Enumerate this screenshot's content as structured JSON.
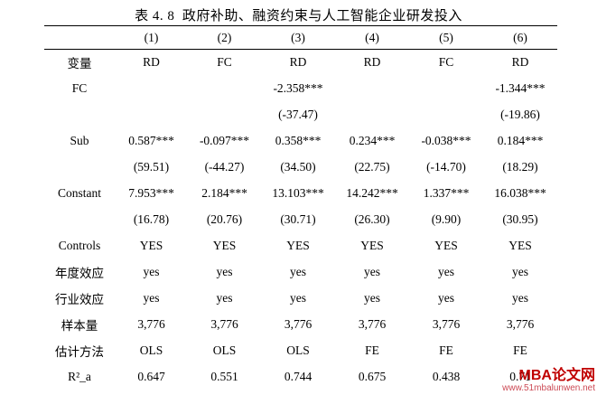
{
  "title": "表 4. 8  政府补助、融资约束与人工智能企业研发投入",
  "table": {
    "col_headers": [
      "",
      "(1)",
      "(2)",
      "(3)",
      "(4)",
      "(5)",
      "(6)"
    ],
    "rows": [
      {
        "label": "变量",
        "cells": [
          "RD",
          "FC",
          "RD",
          "RD",
          "FC",
          "RD"
        ]
      },
      {
        "label": "FC",
        "cells": [
          "",
          "",
          "-2.358***",
          "",
          "",
          "-1.344***"
        ]
      },
      {
        "label": "",
        "cells": [
          "",
          "",
          "(-37.47)",
          "",
          "",
          "(-19.86)"
        ]
      },
      {
        "label": "Sub",
        "cells": [
          "0.587***",
          "-0.097***",
          "0.358***",
          "0.234***",
          "-0.038***",
          "0.184***"
        ]
      },
      {
        "label": "",
        "cells": [
          "(59.51)",
          "(-44.27)",
          "(34.50)",
          "(22.75)",
          "(-14.70)",
          "(18.29)"
        ]
      },
      {
        "label": "Constant",
        "cells": [
          "7.953***",
          "2.184***",
          "13.103***",
          "14.242***",
          "1.337***",
          "16.038***"
        ]
      },
      {
        "label": "",
        "cells": [
          "(16.78)",
          "(20.76)",
          "(30.71)",
          "(26.30)",
          "(9.90)",
          "(30.95)"
        ]
      },
      {
        "label": "Controls",
        "cells": [
          "YES",
          "YES",
          "YES",
          "YES",
          "YES",
          "YES"
        ]
      },
      {
        "label": "年度效应",
        "cells": [
          "yes",
          "yes",
          "yes",
          "yes",
          "yes",
          "yes"
        ]
      },
      {
        "label": "行业效应",
        "cells": [
          "yes",
          "yes",
          "yes",
          "yes",
          "yes",
          "yes"
        ]
      },
      {
        "label": "样本量",
        "cells": [
          "3,776",
          "3,776",
          "3,776",
          "3,776",
          "3,776",
          "3,776"
        ]
      },
      {
        "label": "估计方法",
        "cells": [
          "OLS",
          "OLS",
          "OLS",
          "FE",
          "FE",
          "FE"
        ]
      },
      {
        "label": "R²_a",
        "cells": [
          "0.647",
          "0.551",
          "0.744",
          "0.675",
          "0.438",
          "0.71"
        ]
      }
    ]
  },
  "watermark": {
    "name": "MBA论文网",
    "site": "www.51mbalunwen.net",
    "name_color": "#c00000",
    "site_color": "#cc4a55"
  }
}
